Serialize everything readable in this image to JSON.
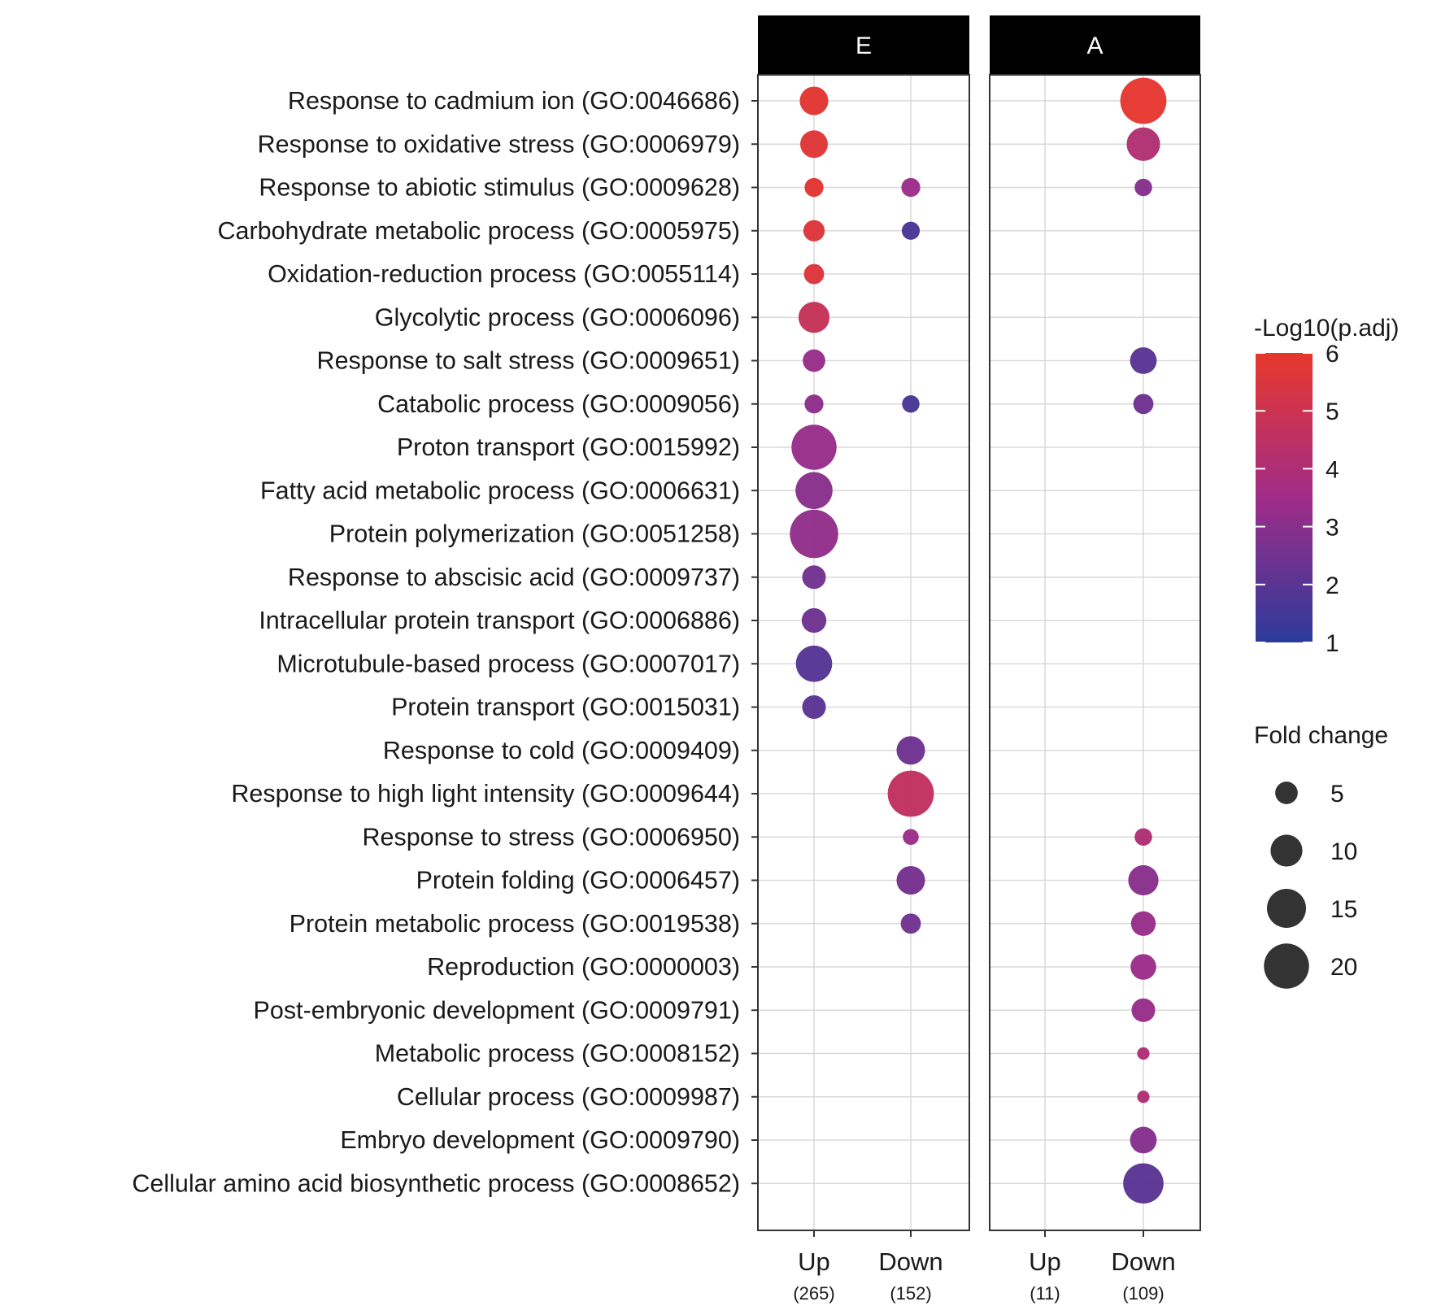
{
  "chart_data": {
    "type": "scatter",
    "facets": [
      {
        "label": "E",
        "columns": [
          {
            "label": "Up",
            "count": "(265)"
          },
          {
            "label": "Down",
            "count": "(152)"
          }
        ]
      },
      {
        "label": "A",
        "columns": [
          {
            "label": "Up",
            "count": "(11)"
          },
          {
            "label": "Down",
            "count": "(109)"
          }
        ]
      }
    ],
    "terms": [
      "Response to cadmium ion (GO:0046686)",
      "Response to oxidative stress (GO:0006979)",
      "Response to abiotic stimulus (GO:0009628)",
      "Carbohydrate metabolic process (GO:0005975)",
      "Oxidation-reduction process (GO:0055114)",
      "Glycolytic process (GO:0006096)",
      "Response to salt stress (GO:0009651)",
      "Catabolic process (GO:0009056)",
      "Proton transport (GO:0015992)",
      "Fatty acid metabolic process (GO:0006631)",
      "Protein polymerization (GO:0051258)",
      "Response to abscisic acid (GO:0009737)",
      "Intracellular protein transport (GO:0006886)",
      "Microtubule-based process (GO:0007017)",
      "Protein transport (GO:0015031)",
      "Response to cold (GO:0009409)",
      "Response to high light intensity (GO:0009644)",
      "Response to stress (GO:0006950)",
      "Protein folding (GO:0006457)",
      "Protein metabolic process (GO:0019538)",
      "Reproduction (GO:0000003)",
      "Post-embryonic development (GO:0009791)",
      "Metabolic process (GO:0008152)",
      "Cellular process (GO:0009987)",
      "Embryo development (GO:0009790)",
      "Cellular amino acid biosynthetic process (GO:0008652)"
    ],
    "points": [
      {
        "facet": 0,
        "col": 0,
        "term": 0,
        "fold_change": 8,
        "neglog10_padj": 5.8
      },
      {
        "facet": 0,
        "col": 0,
        "term": 1,
        "fold_change": 7.5,
        "neglog10_padj": 5.7
      },
      {
        "facet": 0,
        "col": 0,
        "term": 2,
        "fold_change": 3.5,
        "neglog10_padj": 5.8
      },
      {
        "facet": 0,
        "col": 0,
        "term": 3,
        "fold_change": 4.5,
        "neglog10_padj": 5.6
      },
      {
        "facet": 0,
        "col": 0,
        "term": 4,
        "fold_change": 4,
        "neglog10_padj": 5.6
      },
      {
        "facet": 0,
        "col": 0,
        "term": 5,
        "fold_change": 9.5,
        "neglog10_padj": 4.8
      },
      {
        "facet": 0,
        "col": 0,
        "term": 6,
        "fold_change": 5,
        "neglog10_padj": 3.3
      },
      {
        "facet": 0,
        "col": 0,
        "term": 7,
        "fold_change": 3.5,
        "neglog10_padj": 3.1
      },
      {
        "facet": 0,
        "col": 0,
        "term": 8,
        "fold_change": 20,
        "neglog10_padj": 3.3
      },
      {
        "facet": 0,
        "col": 0,
        "term": 9,
        "fold_change": 13.5,
        "neglog10_padj": 3.0
      },
      {
        "facet": 0,
        "col": 0,
        "term": 10,
        "fold_change": 23,
        "neglog10_padj": 3.2
      },
      {
        "facet": 0,
        "col": 0,
        "term": 11,
        "fold_change": 5.5,
        "neglog10_padj": 2.5
      },
      {
        "facet": 0,
        "col": 0,
        "term": 12,
        "fold_change": 6,
        "neglog10_padj": 2.4
      },
      {
        "facet": 0,
        "col": 0,
        "term": 13,
        "fold_change": 13,
        "neglog10_padj": 1.9
      },
      {
        "facet": 0,
        "col": 0,
        "term": 14,
        "fold_change": 5.5,
        "neglog10_padj": 2.0
      },
      {
        "facet": 0,
        "col": 1,
        "term": 2,
        "fold_change": 3.5,
        "neglog10_padj": 3.4
      },
      {
        "facet": 0,
        "col": 1,
        "term": 3,
        "fold_change": 3.2,
        "neglog10_padj": 1.6
      },
      {
        "facet": 0,
        "col": 1,
        "term": 7,
        "fold_change": 3.0,
        "neglog10_padj": 1.6
      },
      {
        "facet": 0,
        "col": 1,
        "term": 15,
        "fold_change": 8,
        "neglog10_padj": 2.4
      },
      {
        "facet": 0,
        "col": 1,
        "term": 16,
        "fold_change": 21,
        "neglog10_padj": 4.6
      },
      {
        "facet": 0,
        "col": 1,
        "term": 17,
        "fold_change": 2.5,
        "neglog10_padj": 3.4
      },
      {
        "facet": 0,
        "col": 1,
        "term": 18,
        "fold_change": 8,
        "neglog10_padj": 2.6
      },
      {
        "facet": 0,
        "col": 1,
        "term": 19,
        "fold_change": 4,
        "neglog10_padj": 2.5
      },
      {
        "facet": 1,
        "col": 1,
        "term": 0,
        "fold_change": 21,
        "neglog10_padj": 5.9
      },
      {
        "facet": 1,
        "col": 1,
        "term": 1,
        "fold_change": 11,
        "neglog10_padj": 4.1
      },
      {
        "facet": 1,
        "col": 1,
        "term": 2,
        "fold_change": 3.0,
        "neglog10_padj": 2.9
      },
      {
        "facet": 1,
        "col": 1,
        "term": 6,
        "fold_change": 7,
        "neglog10_padj": 2.0
      },
      {
        "facet": 1,
        "col": 1,
        "term": 7,
        "fold_change": 4,
        "neglog10_padj": 2.4
      },
      {
        "facet": 1,
        "col": 1,
        "term": 17,
        "fold_change": 3.0,
        "neglog10_padj": 4.0
      },
      {
        "facet": 1,
        "col": 1,
        "term": 18,
        "fold_change": 9,
        "neglog10_padj": 3.0
      },
      {
        "facet": 1,
        "col": 1,
        "term": 19,
        "fold_change": 6,
        "neglog10_padj": 3.3
      },
      {
        "facet": 1,
        "col": 1,
        "term": 20,
        "fold_change": 6.5,
        "neglog10_padj": 3.4
      },
      {
        "facet": 1,
        "col": 1,
        "term": 21,
        "fold_change": 5.5,
        "neglog10_padj": 3.3
      },
      {
        "facet": 1,
        "col": 1,
        "term": 22,
        "fold_change": 1.5,
        "neglog10_padj": 4.0
      },
      {
        "facet": 1,
        "col": 1,
        "term": 23,
        "fold_change": 1.5,
        "neglog10_padj": 4.0
      },
      {
        "facet": 1,
        "col": 1,
        "term": 24,
        "fold_change": 7,
        "neglog10_padj": 2.9
      },
      {
        "facet": 1,
        "col": 1,
        "term": 25,
        "fold_change": 16,
        "neglog10_padj": 2.0
      }
    ],
    "color_legend": {
      "title": "-Log10(p.adj)",
      "min": 1,
      "max": 6,
      "breaks": [
        "6",
        "5",
        "4",
        "3",
        "2",
        "1"
      ],
      "low_color": "#2b3a9a",
      "mid_color": "#a02c88",
      "high_color": "#e8372b"
    },
    "size_legend": {
      "title": "Fold change",
      "breaks": [
        5,
        10,
        15,
        20
      ],
      "labels": [
        "5",
        "10",
        "15",
        "20"
      ],
      "key_color": "#333333"
    },
    "colors": {
      "strip_bg": "#000000",
      "strip_text": "#ffffff",
      "grid": "#d9d9d9",
      "panel_border": "#333333"
    }
  }
}
